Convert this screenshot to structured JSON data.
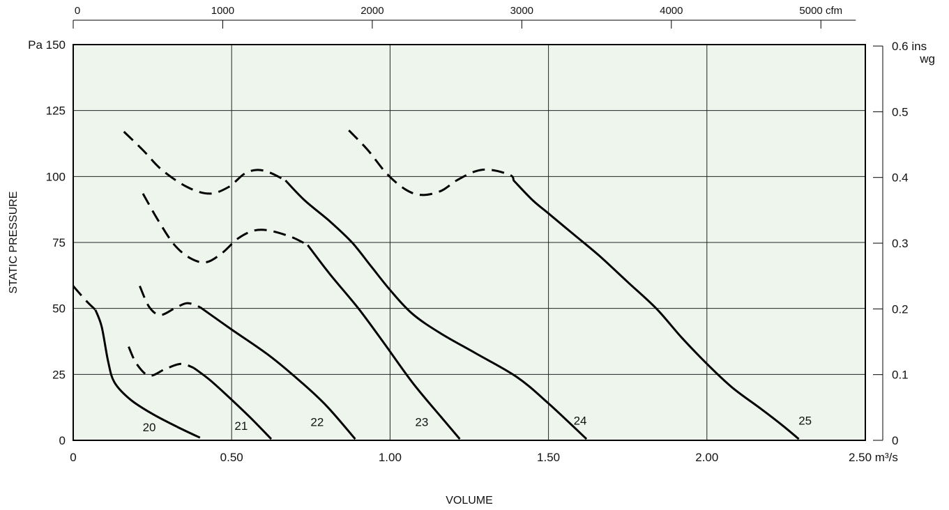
{
  "chart_data": {
    "type": "line",
    "title": "",
    "xlabel": "VOLUME",
    "ylabel": "STATIC PRESSURE",
    "x_unit": "m³/s",
    "y_unit": "Pa",
    "xlim": [
      0,
      2.5
    ],
    "ylim": [
      0,
      150
    ],
    "grid": true,
    "plot_background": "#edf5ed",
    "line_color": "#000000",
    "x_ticks": [
      {
        "value": 0,
        "label": "0"
      },
      {
        "value": 0.5,
        "label": "0.50"
      },
      {
        "value": 1.0,
        "label": "1.00"
      },
      {
        "value": 1.5,
        "label": "1.50"
      },
      {
        "value": 2.0,
        "label": "2.00"
      },
      {
        "value": 2.5,
        "label": "2.50 m³/s"
      }
    ],
    "y_ticks": [
      {
        "value": 0,
        "label": "0"
      },
      {
        "value": 25,
        "label": "25"
      },
      {
        "value": 50,
        "label": "50"
      },
      {
        "value": 75,
        "label": "75"
      },
      {
        "value": 100,
        "label": "100"
      },
      {
        "value": 125,
        "label": "125"
      },
      {
        "value": 150,
        "label": "Pa 150"
      }
    ],
    "secondary_x_axis": {
      "unit": "cfm",
      "ticks": [
        {
          "value": 0,
          "label": "0"
        },
        {
          "value": 1000,
          "label": "1000"
        },
        {
          "value": 2000,
          "label": "2000"
        },
        {
          "value": 3000,
          "label": "3000"
        },
        {
          "value": 4000,
          "label": "4000"
        },
        {
          "value": 5000,
          "label": "5000 cfm"
        }
      ]
    },
    "secondary_y_axis": {
      "unit": "ins wg",
      "ticks": [
        {
          "value": 0,
          "label": "0"
        },
        {
          "value": 0.1,
          "label": "0.1"
        },
        {
          "value": 0.2,
          "label": "0.2"
        },
        {
          "value": 0.3,
          "label": "0.3"
        },
        {
          "value": 0.4,
          "label": "0.4"
        },
        {
          "value": 0.5,
          "label": "0.5"
        },
        {
          "value": 0.6,
          "label": "0.6 ins"
        }
      ],
      "extra_label": "wg"
    },
    "series": [
      {
        "name": "20",
        "label_at": [
          0.24,
          5
        ],
        "dashed": [
          [
            0,
            58.5
          ],
          [
            0.04,
            53
          ],
          [
            0.07,
            49.5
          ]
        ],
        "solid": [
          [
            0.07,
            49.5
          ],
          [
            0.09,
            43
          ],
          [
            0.11,
            30
          ],
          [
            0.13,
            22
          ],
          [
            0.18,
            15.5
          ],
          [
            0.25,
            10
          ],
          [
            0.33,
            5
          ],
          [
            0.4,
            1
          ]
        ]
      },
      {
        "name": "21",
        "label_at": [
          0.53,
          5.5
        ],
        "dashed": [
          [
            0.175,
            35.5
          ],
          [
            0.2,
            29
          ],
          [
            0.24,
            24.5
          ],
          [
            0.29,
            27
          ],
          [
            0.34,
            29
          ],
          [
            0.38,
            27.5
          ]
        ],
        "solid": [
          [
            0.38,
            27.5
          ],
          [
            0.43,
            23
          ],
          [
            0.49,
            16.5
          ],
          [
            0.56,
            8.5
          ],
          [
            0.625,
            0.5
          ]
        ]
      },
      {
        "name": "22",
        "label_at": [
          0.77,
          7
        ],
        "dashed": [
          [
            0.21,
            58.5
          ],
          [
            0.24,
            50.5
          ],
          [
            0.275,
            47.5
          ],
          [
            0.32,
            50
          ],
          [
            0.36,
            52
          ],
          [
            0.4,
            50.5
          ]
        ],
        "solid": [
          [
            0.4,
            50.5
          ],
          [
            0.5,
            42
          ],
          [
            0.62,
            32
          ],
          [
            0.72,
            22
          ],
          [
            0.8,
            13
          ],
          [
            0.89,
            0.5
          ]
        ]
      },
      {
        "name": "23",
        "label_at": [
          1.1,
          7
        ],
        "dashed": [
          [
            0.22,
            93.5
          ],
          [
            0.27,
            83
          ],
          [
            0.32,
            74
          ],
          [
            0.37,
            69
          ],
          [
            0.42,
            67.5
          ],
          [
            0.47,
            71
          ],
          [
            0.52,
            76.5
          ],
          [
            0.57,
            79.5
          ],
          [
            0.62,
            79.5
          ],
          [
            0.69,
            77
          ],
          [
            0.74,
            74
          ]
        ],
        "solid": [
          [
            0.74,
            74
          ],
          [
            0.81,
            63
          ],
          [
            0.9,
            50
          ],
          [
            0.98,
            37
          ],
          [
            1.07,
            22
          ],
          [
            1.16,
            9
          ],
          [
            1.22,
            0.5
          ]
        ]
      },
      {
        "name": "24",
        "label_at": [
          1.6,
          7.5
        ],
        "dashed": [
          [
            0.16,
            117
          ],
          [
            0.22,
            110
          ],
          [
            0.28,
            102.5
          ],
          [
            0.36,
            96
          ],
          [
            0.43,
            93.5
          ],
          [
            0.49,
            96
          ],
          [
            0.54,
            101
          ],
          [
            0.58,
            102.5
          ],
          [
            0.62,
            101.5
          ],
          [
            0.67,
            98.5
          ]
        ],
        "solid": [
          [
            0.67,
            98.5
          ],
          [
            0.73,
            91
          ],
          [
            0.81,
            83
          ],
          [
            0.88,
            75
          ],
          [
            0.94,
            66
          ],
          [
            1.0,
            57
          ],
          [
            1.07,
            48
          ],
          [
            1.16,
            40.5
          ],
          [
            1.27,
            33
          ],
          [
            1.4,
            24
          ],
          [
            1.5,
            14
          ],
          [
            1.62,
            0.5
          ]
        ]
      },
      {
        "name": "25",
        "label_at": [
          2.31,
          7.5
        ],
        "dashed": [
          [
            0.87,
            117.5
          ],
          [
            0.93,
            110
          ],
          [
            0.99,
            101
          ],
          [
            1.05,
            95
          ],
          [
            1.1,
            93
          ],
          [
            1.16,
            94.5
          ],
          [
            1.21,
            98.5
          ],
          [
            1.27,
            102
          ],
          [
            1.32,
            102.5
          ],
          [
            1.38,
            100.5
          ],
          [
            1.39,
            98.5
          ]
        ],
        "solid": [
          [
            1.39,
            98.5
          ],
          [
            1.45,
            91
          ],
          [
            1.5,
            86
          ],
          [
            1.58,
            78
          ],
          [
            1.66,
            70
          ],
          [
            1.75,
            60
          ],
          [
            1.84,
            50
          ],
          [
            1.92,
            39
          ],
          [
            2.0,
            29
          ],
          [
            2.08,
            20
          ],
          [
            2.17,
            12
          ],
          [
            2.24,
            5.5
          ],
          [
            2.29,
            0.5
          ]
        ]
      }
    ]
  }
}
